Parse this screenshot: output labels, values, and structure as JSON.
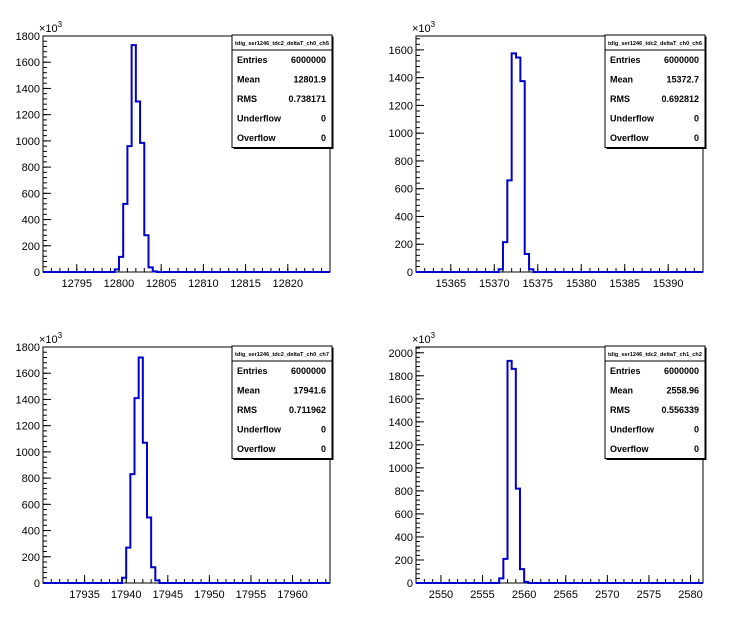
{
  "chart_data": [
    {
      "type": "histogram",
      "title": "tdig_ser1246_tdc2_deltaT_ch0_ch5",
      "exponent_label": "×10",
      "exponent": "3",
      "x_range": [
        12791,
        12825
      ],
      "y_range": [
        0,
        1800
      ],
      "x_ticks": [
        "12795",
        "12800",
        "12805",
        "12810",
        "12815",
        "12820"
      ],
      "x_tick_values": [
        12795,
        12800,
        12805,
        12810,
        12815,
        12820
      ],
      "y_ticks": [
        "0",
        "200",
        "400",
        "600",
        "800",
        "1000",
        "1200",
        "1400",
        "1600",
        "1800"
      ],
      "y_tick_values": [
        0,
        200,
        400,
        600,
        800,
        1000,
        1200,
        1400,
        1600,
        1800
      ],
      "bin_width": 0.5,
      "bins": [
        {
          "x": 12799.5,
          "y": 20
        },
        {
          "x": 12800.0,
          "y": 115
        },
        {
          "x": 12800.5,
          "y": 520
        },
        {
          "x": 12801.0,
          "y": 960
        },
        {
          "x": 12801.5,
          "y": 1730
        },
        {
          "x": 12802.0,
          "y": 1300
        },
        {
          "x": 12802.5,
          "y": 985
        },
        {
          "x": 12803.0,
          "y": 280
        },
        {
          "x": 12803.5,
          "y": 35
        },
        {
          "x": 12804.0,
          "y": 5
        }
      ],
      "stats": [
        {
          "label": "Entries",
          "value": "6000000"
        },
        {
          "label": "Mean",
          "value": "12801.9"
        },
        {
          "label": "RMS",
          "value": "0.738171"
        },
        {
          "label": "Underflow",
          "value": "0"
        },
        {
          "label": "Overflow",
          "value": "0"
        }
      ],
      "line_color": "#0000cc"
    },
    {
      "type": "histogram",
      "title": "tdig_ser1246_tdc2_deltaT_ch0_ch6",
      "exponent_label": "×10",
      "exponent": "3",
      "x_range": [
        15361,
        15394
      ],
      "y_range": [
        0,
        1700
      ],
      "x_ticks": [
        "15365",
        "15370",
        "15375",
        "15380",
        "15385",
        "15390"
      ],
      "x_tick_values": [
        15365,
        15370,
        15375,
        15380,
        15385,
        15390
      ],
      "y_ticks": [
        "0",
        "200",
        "400",
        "600",
        "800",
        "1000",
        "1200",
        "1400",
        "1600"
      ],
      "y_tick_values": [
        0,
        200,
        400,
        600,
        800,
        1000,
        1200,
        1400,
        1600
      ],
      "bin_width": 0.5,
      "bins": [
        {
          "x": 15370.5,
          "y": 20
        },
        {
          "x": 15371.0,
          "y": 215
        },
        {
          "x": 15371.5,
          "y": 660
        },
        {
          "x": 15372.0,
          "y": 1575
        },
        {
          "x": 15372.5,
          "y": 1545
        },
        {
          "x": 15373.0,
          "y": 1375
        },
        {
          "x": 15373.5,
          "y": 130
        },
        {
          "x": 15374.0,
          "y": 20
        }
      ],
      "stats": [
        {
          "label": "Entries",
          "value": "6000000"
        },
        {
          "label": "Mean",
          "value": "15372.7"
        },
        {
          "label": "RMS",
          "value": "0.692812"
        },
        {
          "label": "Underflow",
          "value": "0"
        },
        {
          "label": "Overflow",
          "value": "0"
        }
      ],
      "line_color": "#0000cc"
    },
    {
      "type": "histogram",
      "title": "tdig_ser1246_tdc2_deltaT_ch0_ch7",
      "exponent_label": "×10",
      "exponent": "3",
      "x_range": [
        17930,
        17964.5
      ],
      "y_range": [
        0,
        1800
      ],
      "x_ticks": [
        "17935",
        "17940",
        "17945",
        "17950",
        "17955",
        "17960"
      ],
      "x_tick_values": [
        17935,
        17940,
        17945,
        17950,
        17955,
        17960
      ],
      "y_ticks": [
        "0",
        "200",
        "400",
        "600",
        "800",
        "1000",
        "1200",
        "1400",
        "1600",
        "1800"
      ],
      "y_tick_values": [
        0,
        200,
        400,
        600,
        800,
        1000,
        1200,
        1400,
        1600,
        1800
      ],
      "bin_width": 0.5,
      "bins": [
        {
          "x": 17939.5,
          "y": 40
        },
        {
          "x": 17940.0,
          "y": 270
        },
        {
          "x": 17940.5,
          "y": 830
        },
        {
          "x": 17941.0,
          "y": 1410
        },
        {
          "x": 17941.5,
          "y": 1720
        },
        {
          "x": 17942.0,
          "y": 1070
        },
        {
          "x": 17942.5,
          "y": 500
        },
        {
          "x": 17943.0,
          "y": 120
        },
        {
          "x": 17943.5,
          "y": 20
        }
      ],
      "stats": [
        {
          "label": "Entries",
          "value": "6000000"
        },
        {
          "label": "Mean",
          "value": "17941.6"
        },
        {
          "label": "RMS",
          "value": "0.711962"
        },
        {
          "label": "Underflow",
          "value": "0"
        },
        {
          "label": "Overflow",
          "value": "0"
        }
      ],
      "line_color": "#0000cc"
    },
    {
      "type": "histogram",
      "title": "tdig_ser1246_tdc2_deltaT_ch1_ch2",
      "exponent_label": "×10",
      "exponent": "3",
      "x_range": [
        2547,
        2581.5
      ],
      "y_range": [
        0,
        2050
      ],
      "x_ticks": [
        "2550",
        "2555",
        "2560",
        "2565",
        "2570",
        "2575",
        "2580"
      ],
      "x_tick_values": [
        2550,
        2555,
        2560,
        2565,
        2570,
        2575,
        2580
      ],
      "y_ticks": [
        "0",
        "200",
        "400",
        "600",
        "800",
        "1000",
        "1200",
        "1400",
        "1600",
        "1800",
        "2000"
      ],
      "y_tick_values": [
        0,
        200,
        400,
        600,
        800,
        1000,
        1200,
        1400,
        1600,
        1800,
        2000
      ],
      "bin_width": 0.5,
      "bins": [
        {
          "x": 2557.0,
          "y": 40
        },
        {
          "x": 2557.5,
          "y": 210
        },
        {
          "x": 2558.0,
          "y": 1930
        },
        {
          "x": 2558.5,
          "y": 1860
        },
        {
          "x": 2559.0,
          "y": 820
        },
        {
          "x": 2559.5,
          "y": 120
        },
        {
          "x": 2560.0,
          "y": 10
        }
      ],
      "stats": [
        {
          "label": "Entries",
          "value": "6000000"
        },
        {
          "label": "Mean",
          "value": "2558.96"
        },
        {
          "label": "RMS",
          "value": "0.556339"
        },
        {
          "label": "Underflow",
          "value": "0"
        },
        {
          "label": "Overflow",
          "value": "0"
        }
      ],
      "line_color": "#0000cc"
    }
  ]
}
